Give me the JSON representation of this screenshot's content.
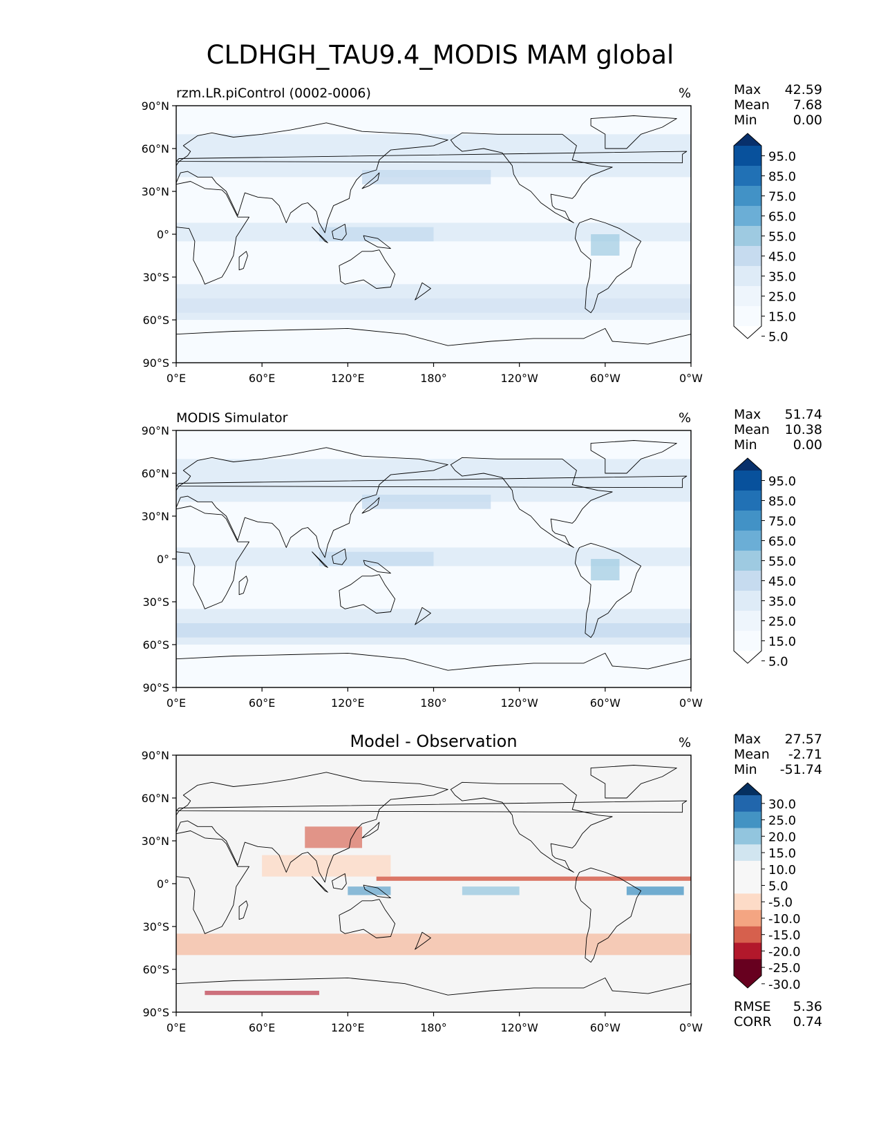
{
  "title": "CLDHGH_TAU9.4_MODIS MAM global",
  "colors": {
    "land_line": "#000000",
    "frame": "#000000",
    "blues": [
      "#f7fbff",
      "#deebf7",
      "#c6dbef",
      "#9ecae1",
      "#6baed6",
      "#4292c6",
      "#2171b5",
      "#08519c",
      "#08306b"
    ],
    "diff": [
      "#67001f",
      "#b2182b",
      "#d6604d",
      "#f4a582",
      "#fddbc7",
      "#f7f7f7",
      "#d1e5f0",
      "#92c5de",
      "#4393c3",
      "#2166ac",
      "#053061"
    ]
  },
  "chart_data": [
    {
      "type": "heatmap",
      "panel": "test",
      "left_title": "rzm.LR.piControl (0002-0006)",
      "center_title": "",
      "units": "%",
      "xlabel": "",
      "ylabel": "",
      "xlim": [
        0,
        360
      ],
      "ylim": [
        -90,
        90
      ],
      "x_ticks": [
        "0°E",
        "60°E",
        "120°E",
        "180°",
        "120°W",
        "60°W",
        "0°W"
      ],
      "y_ticks": [
        "90°N",
        "60°N",
        "30°N",
        "0°",
        "30°S",
        "60°S",
        "90°S"
      ],
      "stats": {
        "labels": [
          "Max",
          "Mean",
          "Min"
        ],
        "values": [
          "42.59",
          "7.68",
          "0.00"
        ]
      },
      "colorbar": {
        "levels": [
          "95.0",
          "85.0",
          "75.0",
          "65.0",
          "55.0",
          "45.0",
          "35.0",
          "25.0",
          "15.0",
          "5.0"
        ]
      }
    },
    {
      "type": "heatmap",
      "panel": "reference",
      "left_title": "MODIS Simulator",
      "center_title": "",
      "units": "%",
      "xlabel": "",
      "ylabel": "",
      "xlim": [
        0,
        360
      ],
      "ylim": [
        -90,
        90
      ],
      "x_ticks": [
        "0°E",
        "60°E",
        "120°E",
        "180°",
        "120°W",
        "60°W",
        "0°W"
      ],
      "y_ticks": [
        "90°N",
        "60°N",
        "30°N",
        "0°",
        "30°S",
        "60°S",
        "90°S"
      ],
      "stats": {
        "labels": [
          "Max",
          "Mean",
          "Min"
        ],
        "values": [
          "51.74",
          "10.38",
          "0.00"
        ]
      },
      "colorbar": {
        "levels": [
          "95.0",
          "85.0",
          "75.0",
          "65.0",
          "55.0",
          "45.0",
          "35.0",
          "25.0",
          "15.0",
          "5.0"
        ]
      }
    },
    {
      "type": "heatmap",
      "panel": "difference",
      "left_title": "",
      "center_title": "Model - Observation",
      "units": "%",
      "xlabel": "",
      "ylabel": "",
      "xlim": [
        0,
        360
      ],
      "ylim": [
        -90,
        90
      ],
      "x_ticks": [
        "0°E",
        "60°E",
        "120°E",
        "180°",
        "120°W",
        "60°W",
        "0°W"
      ],
      "y_ticks": [
        "90°N",
        "60°N",
        "30°N",
        "0°",
        "30°S",
        "60°S",
        "90°S"
      ],
      "stats": {
        "labels": [
          "Max",
          "Mean",
          "Min"
        ],
        "values": [
          "27.57",
          "-2.71",
          "-51.74"
        ]
      },
      "colorbar": {
        "levels": [
          "30.0",
          "25.0",
          "20.0",
          "15.0",
          "10.0",
          "5.0",
          "-5.0",
          "-10.0",
          "-15.0",
          "-20.0",
          "-25.0",
          "-30.0"
        ]
      },
      "metrics": {
        "labels": [
          "RMSE",
          "CORR"
        ],
        "values": [
          "5.36",
          "0.74"
        ]
      }
    }
  ]
}
